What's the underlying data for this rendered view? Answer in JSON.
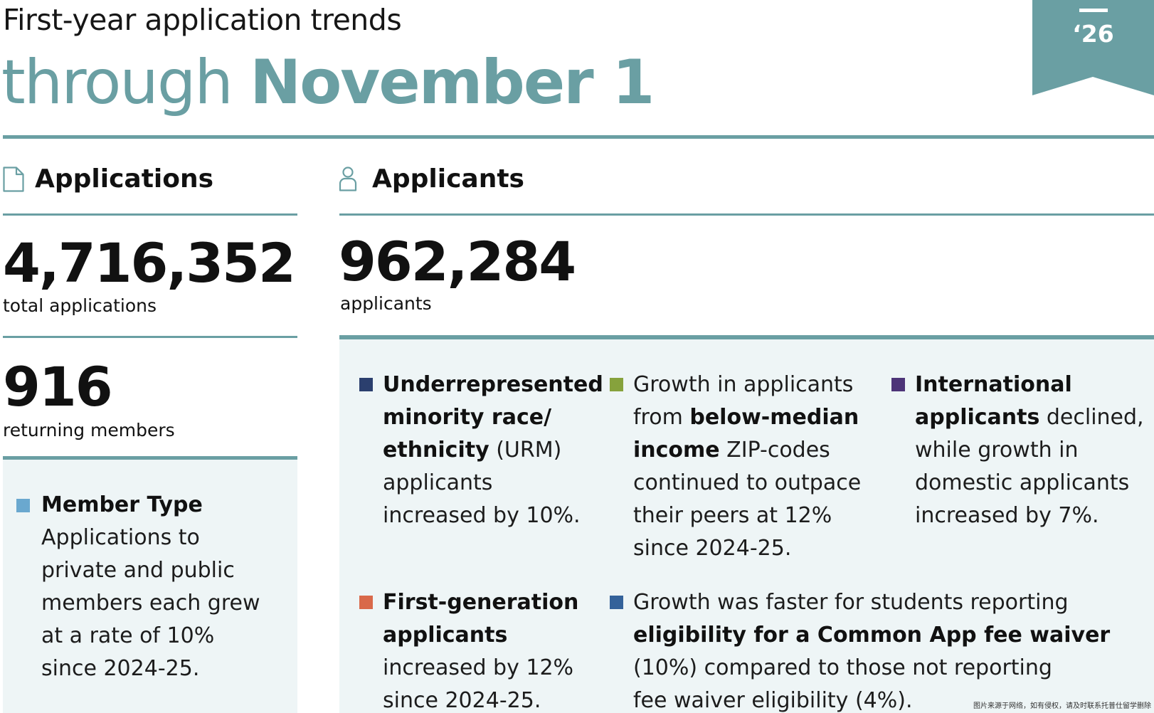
{
  "header": {
    "title_line1": "First-year application trends",
    "title_line2_light": "through ",
    "title_line2_bold": "November 1",
    "year_badge": "‘26"
  },
  "applications": {
    "heading": "Applications",
    "total_value": "4,716,352",
    "total_label": "total applications",
    "returning_value": "916",
    "returning_label": "returning members",
    "member_type": {
      "title": "Member Type",
      "line1": "Applications to",
      "line2": "private and public",
      "line3": "members each grew",
      "line4": "at a rate of 10%",
      "line5": "since 2024-25."
    }
  },
  "applicants": {
    "heading": "Applicants",
    "total_value": "962,284",
    "total_label": "applicants",
    "facts": {
      "urm": {
        "b1": "Underrepresented",
        "b2": "minority race/",
        "b3": "ethnicity",
        "t3": " (URM)",
        "t4": "applicants",
        "t5": "increased by 10%."
      },
      "income": {
        "t1": "Growth in applicants",
        "t2a": "from ",
        "b2": "below-median",
        "b3": "income",
        "t3": " ZIP-codes",
        "t4": "continued to outpace",
        "t5": "their peers at 12%",
        "t6": "since 2024-25."
      },
      "international": {
        "b1": "International",
        "b2": "applicants",
        "t2": " declined,",
        "t3": "while growth in",
        "t4": "domestic applicants",
        "t5": "increased by 7%."
      },
      "firstgen": {
        "b1": "First-generation",
        "b2": "applicants",
        "t3": "increased by 12%",
        "t4": "since 2024-25."
      },
      "feewaiver": {
        "t1": "Growth was faster for students reporting",
        "b2": "eligibility for a Common App fee waiver",
        "t3": "(10%) compared to those not reporting",
        "t4": "fee waiver eligibility (4%)."
      }
    }
  },
  "watermark": "图片来源于网络，如有侵权，请及时联系托普仕留学删除",
  "colors": {
    "teal": "#6a9fa3",
    "panel": "#eef5f6",
    "urm": "#2b3f6e",
    "income": "#86a23c",
    "international": "#4d3478",
    "firstgen": "#d9694a",
    "feewaiver": "#34629a",
    "member_type": "#6aa8cf"
  },
  "icons": {
    "applications": "document-icon",
    "applicants": "person-icon"
  }
}
